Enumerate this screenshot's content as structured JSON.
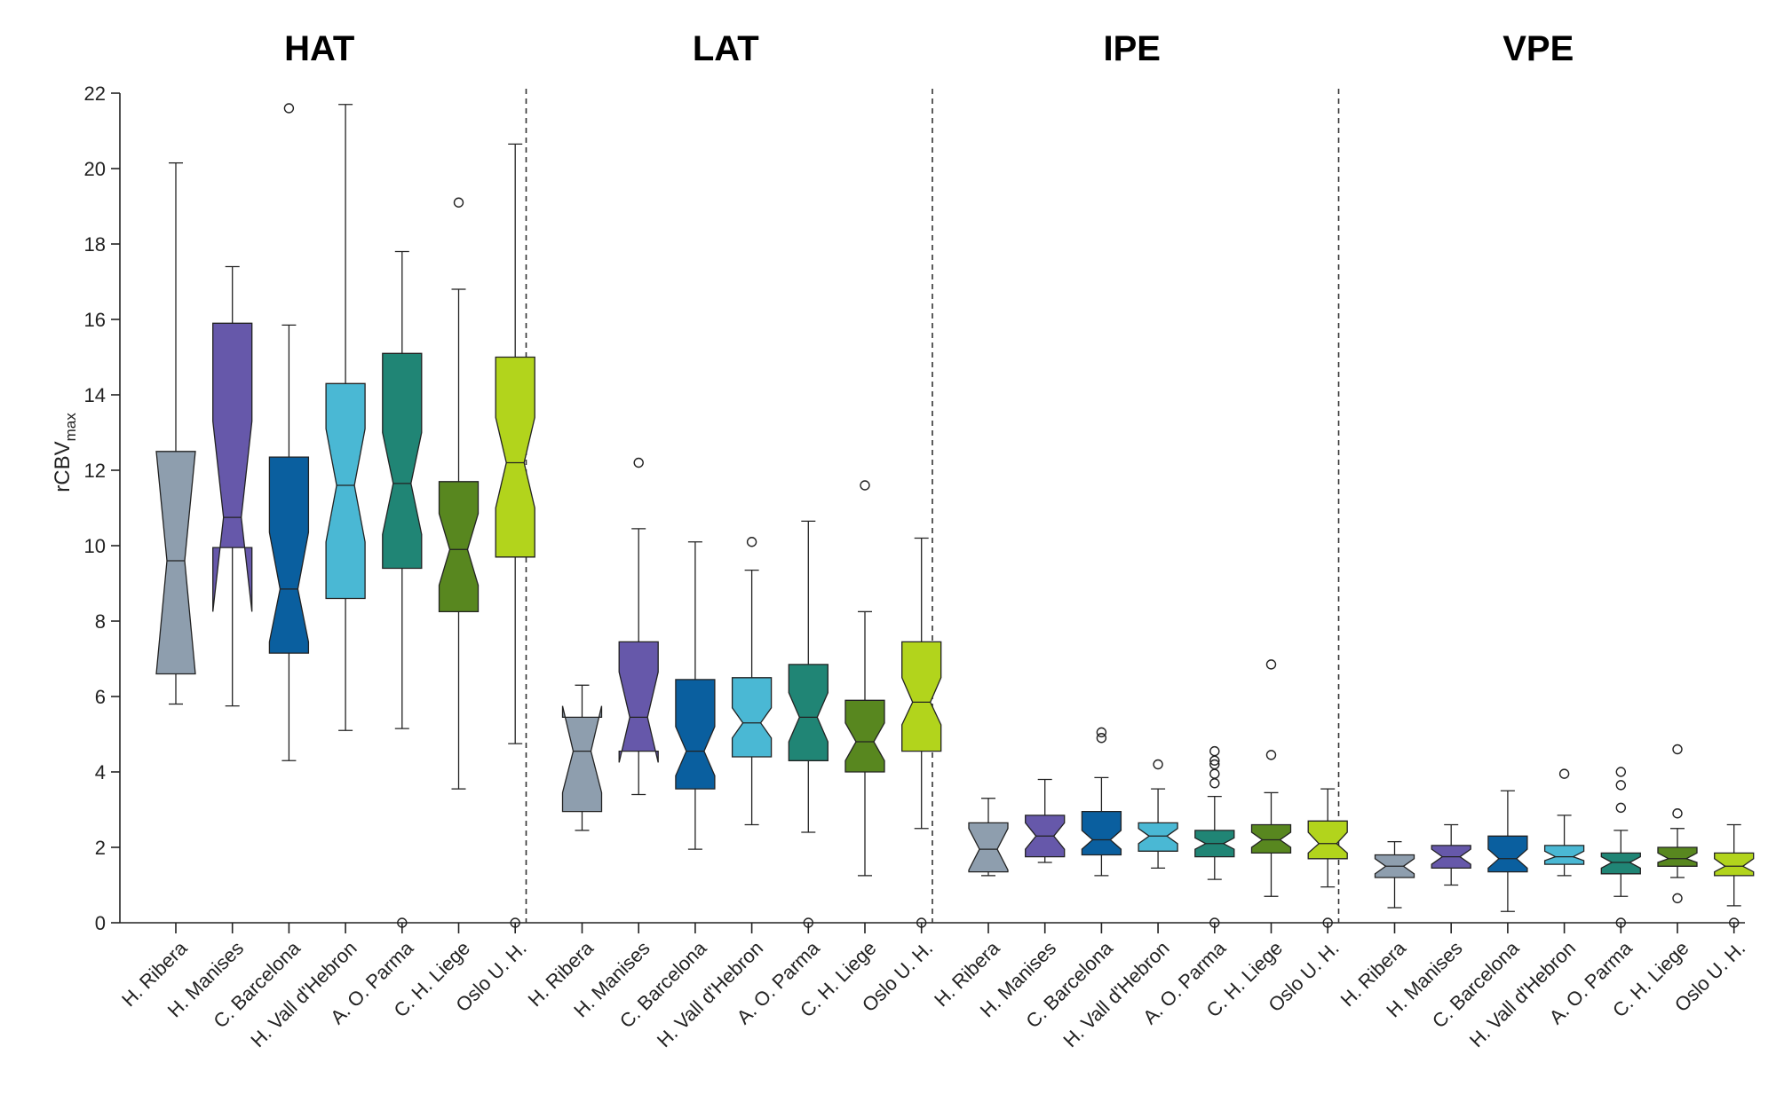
{
  "chart_data": {
    "type": "boxplot",
    "ylabel": "rCBV",
    "ylabel_subscript": "max",
    "ylim": [
      0,
      22
    ],
    "yticks": [
      "0",
      "2",
      "4",
      "6",
      "8",
      "10",
      "12",
      "14",
      "16",
      "18",
      "20",
      "22"
    ],
    "categories": [
      "H. Ribera",
      "H. Manises",
      "C. Barcelona",
      "H. Vall d'Hebron",
      "A. O. Parma",
      "C. H. Liege",
      "Oslo U. H."
    ],
    "colors": [
      "#8e9eae",
      "#6658aa",
      "#0a5f9f",
      "#4ab8d4",
      "#208575",
      "#58871f",
      "#b2d41c"
    ],
    "panels": [
      {
        "title": "HAT",
        "boxes": [
          {
            "whislo": 5.8,
            "q1": 6.6,
            "med": 9.6,
            "q3": 12.5,
            "whishi": 20.15,
            "notchlo": 6.6,
            "notchhi": 12.5,
            "fliers": []
          },
          {
            "whislo": 5.75,
            "q1": 9.95,
            "med": 10.75,
            "q3": 15.9,
            "whishi": 17.4,
            "notchlo": 8.25,
            "notchhi": 13.3,
            "fliers": []
          },
          {
            "whislo": 4.3,
            "q1": 7.15,
            "med": 8.85,
            "q3": 12.35,
            "whishi": 15.85,
            "notchlo": 7.45,
            "notchhi": 10.35,
            "fliers": [
              21.6
            ]
          },
          {
            "whislo": 5.1,
            "q1": 8.6,
            "med": 11.6,
            "q3": 14.3,
            "whishi": 21.7,
            "notchlo": 10.1,
            "notchhi": 13.1,
            "fliers": []
          },
          {
            "whislo": 5.15,
            "q1": 9.4,
            "med": 11.65,
            "q3": 15.1,
            "whishi": 17.8,
            "notchlo": 10.3,
            "notchhi": 13.0,
            "fliers": [
              0
            ]
          },
          {
            "whislo": 3.55,
            "q1": 8.25,
            "med": 9.9,
            "q3": 11.7,
            "whishi": 16.8,
            "notchlo": 8.95,
            "notchhi": 10.85,
            "fliers": [
              19.1
            ]
          },
          {
            "whislo": 4.75,
            "q1": 9.7,
            "med": 12.2,
            "q3": 15.0,
            "whishi": 20.65,
            "notchlo": 11.0,
            "notchhi": 13.4,
            "fliers": [
              0
            ]
          }
        ]
      },
      {
        "title": "LAT",
        "boxes": [
          {
            "whislo": 2.45,
            "q1": 2.95,
            "med": 4.55,
            "q3": 5.45,
            "whishi": 6.3,
            "notchlo": 3.45,
            "notchhi": 5.75,
            "fliers": []
          },
          {
            "whislo": 3.4,
            "q1": 4.55,
            "med": 5.45,
            "q3": 7.45,
            "whishi": 10.45,
            "notchlo": 4.25,
            "notchhi": 6.65,
            "fliers": [
              12.2
            ]
          },
          {
            "whislo": 1.95,
            "q1": 3.55,
            "med": 4.55,
            "q3": 6.45,
            "whishi": 10.1,
            "notchlo": 3.9,
            "notchhi": 5.2,
            "fliers": []
          },
          {
            "whislo": 2.6,
            "q1": 4.4,
            "med": 5.3,
            "q3": 6.5,
            "whishi": 9.35,
            "notchlo": 4.9,
            "notchhi": 5.7,
            "fliers": [
              10.1
            ]
          },
          {
            "whislo": 2.4,
            "q1": 4.3,
            "med": 5.45,
            "q3": 6.85,
            "whishi": 10.65,
            "notchlo": 4.8,
            "notchhi": 6.1,
            "fliers": [
              0
            ]
          },
          {
            "whislo": 1.25,
            "q1": 4.0,
            "med": 4.8,
            "q3": 5.9,
            "whishi": 8.25,
            "notchlo": 4.3,
            "notchhi": 5.3,
            "fliers": [
              11.6
            ]
          },
          {
            "whislo": 2.5,
            "q1": 4.55,
            "med": 5.85,
            "q3": 7.45,
            "whishi": 10.2,
            "notchlo": 5.25,
            "notchhi": 6.5,
            "fliers": [
              0
            ]
          }
        ]
      },
      {
        "title": "IPE",
        "boxes": [
          {
            "whislo": 1.25,
            "q1": 1.35,
            "med": 1.95,
            "q3": 2.65,
            "whishi": 3.3,
            "notchlo": 1.4,
            "notchhi": 2.5,
            "fliers": []
          },
          {
            "whislo": 1.6,
            "q1": 1.75,
            "med": 2.3,
            "q3": 2.85,
            "whishi": 3.8,
            "notchlo": 1.95,
            "notchhi": 2.65,
            "fliers": []
          },
          {
            "whislo": 1.25,
            "q1": 1.8,
            "med": 2.2,
            "q3": 2.95,
            "whishi": 3.85,
            "notchlo": 1.95,
            "notchhi": 2.45,
            "fliers": [
              5.05,
              4.9
            ]
          },
          {
            "whislo": 1.45,
            "q1": 1.9,
            "med": 2.3,
            "q3": 2.65,
            "whishi": 3.55,
            "notchlo": 2.1,
            "notchhi": 2.5,
            "fliers": [
              4.2
            ]
          },
          {
            "whislo": 1.15,
            "q1": 1.75,
            "med": 2.1,
            "q3": 2.45,
            "whishi": 3.35,
            "notchlo": 1.95,
            "notchhi": 2.25,
            "fliers": [
              4.55,
              4.3,
              4.2,
              3.95,
              3.7,
              0
            ]
          },
          {
            "whislo": 0.7,
            "q1": 1.85,
            "med": 2.2,
            "q3": 2.6,
            "whishi": 3.45,
            "notchlo": 2.0,
            "notchhi": 2.4,
            "fliers": [
              6.85,
              4.45
            ]
          },
          {
            "whislo": 0.95,
            "q1": 1.7,
            "med": 2.1,
            "q3": 2.7,
            "whishi": 3.55,
            "notchlo": 1.85,
            "notchhi": 2.4,
            "fliers": [
              0
            ]
          }
        ]
      },
      {
        "title": "VPE",
        "boxes": [
          {
            "whislo": 0.4,
            "q1": 1.2,
            "med": 1.5,
            "q3": 1.8,
            "whishi": 2.15,
            "notchlo": 1.3,
            "notchhi": 1.7,
            "fliers": []
          },
          {
            "whislo": 1.0,
            "q1": 1.45,
            "med": 1.75,
            "q3": 2.05,
            "whishi": 2.6,
            "notchlo": 1.55,
            "notchhi": 1.95,
            "fliers": []
          },
          {
            "whislo": 0.3,
            "q1": 1.35,
            "med": 1.7,
            "q3": 2.3,
            "whishi": 3.5,
            "notchlo": 1.45,
            "notchhi": 1.95,
            "fliers": []
          },
          {
            "whislo": 1.25,
            "q1": 1.55,
            "med": 1.75,
            "q3": 2.05,
            "whishi": 2.85,
            "notchlo": 1.65,
            "notchhi": 1.9,
            "fliers": [
              3.95
            ]
          },
          {
            "whislo": 0.7,
            "q1": 1.3,
            "med": 1.6,
            "q3": 1.85,
            "whishi": 2.45,
            "notchlo": 1.45,
            "notchhi": 1.75,
            "fliers": [
              4.0,
              3.65,
              3.05,
              0
            ]
          },
          {
            "whislo": 1.2,
            "q1": 1.5,
            "med": 1.7,
            "q3": 2.0,
            "whishi": 2.5,
            "notchlo": 1.6,
            "notchhi": 1.85,
            "fliers": [
              4.6,
              2.9,
              0.65
            ]
          },
          {
            "whislo": 0.45,
            "q1": 1.25,
            "med": 1.5,
            "q3": 1.85,
            "whishi": 2.6,
            "notchlo": 1.35,
            "notchhi": 1.7,
            "fliers": [
              0
            ]
          }
        ]
      }
    ]
  }
}
